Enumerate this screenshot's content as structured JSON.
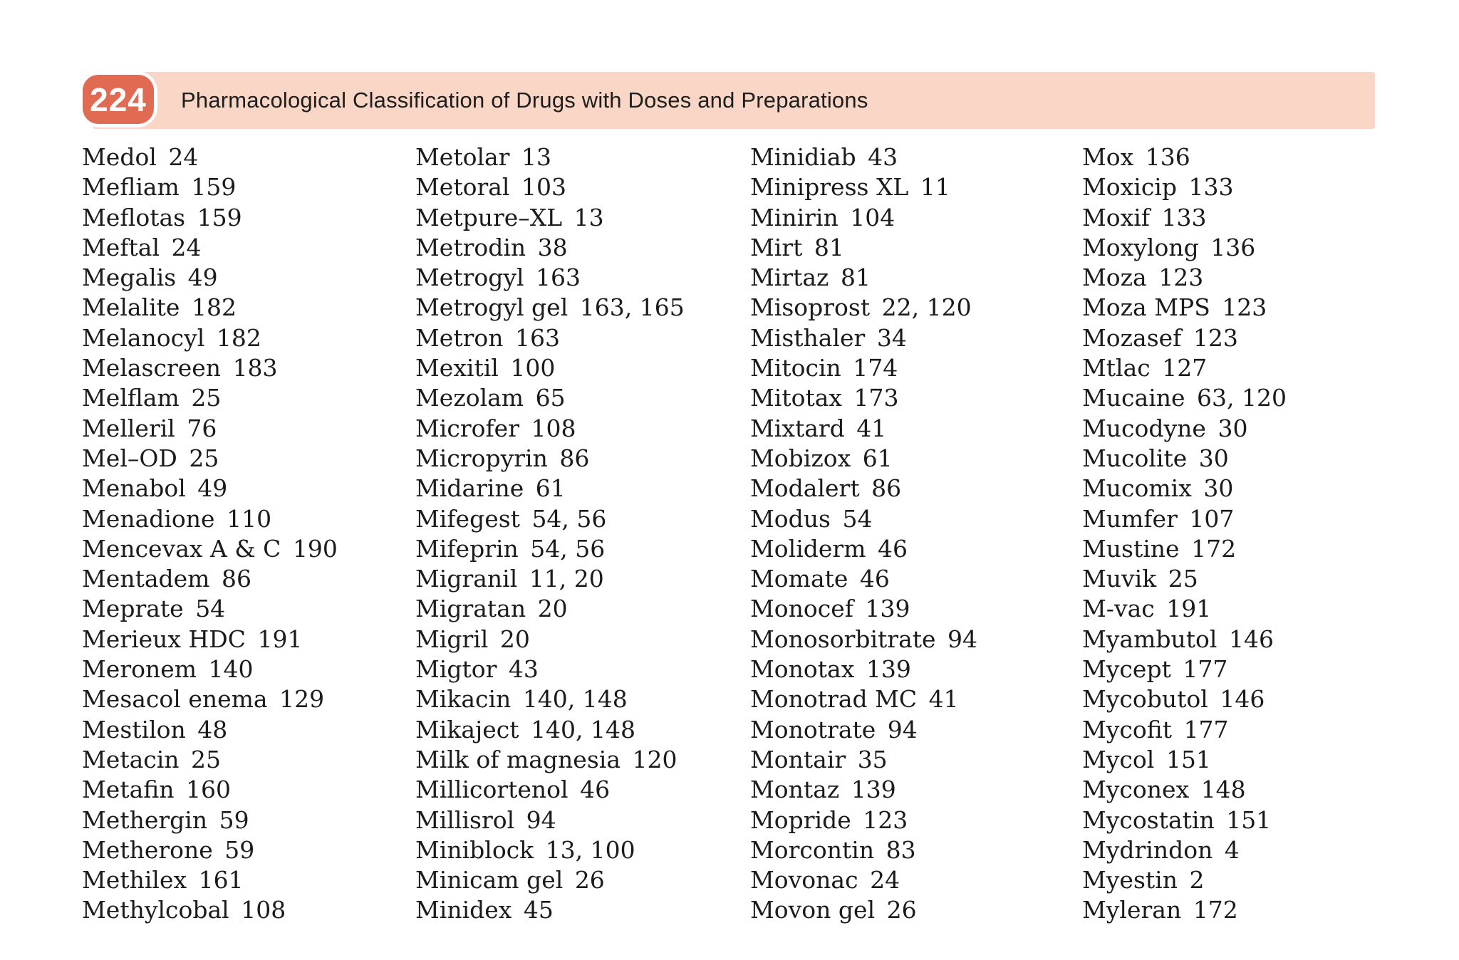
{
  "header": {
    "page_number": "224",
    "title": "Pharmacological Classification of Drugs with Doses and Preparations"
  },
  "colors": {
    "badge": "#e06a52",
    "band": "#f9d6c6",
    "body_text": "#1b1b1b"
  },
  "index": {
    "columns": [
      {
        "entries": [
          {
            "name": "Medol",
            "pages": "24"
          },
          {
            "name": "Mefliam",
            "pages": "159"
          },
          {
            "name": "Meflotas",
            "pages": "159"
          },
          {
            "name": "Meftal",
            "pages": "24"
          },
          {
            "name": "Megalis",
            "pages": "49"
          },
          {
            "name": "Melalite",
            "pages": "182"
          },
          {
            "name": "Melanocyl",
            "pages": "182"
          },
          {
            "name": "Melascreen",
            "pages": "183"
          },
          {
            "name": "Melflam",
            "pages": "25"
          },
          {
            "name": "Melleril",
            "pages": "76"
          },
          {
            "name": "Mel–OD",
            "pages": "25"
          },
          {
            "name": "Menabol",
            "pages": "49"
          },
          {
            "name": "Menadione",
            "pages": "110"
          },
          {
            "name": "Mencevax A & C",
            "pages": "190"
          },
          {
            "name": "Mentadem",
            "pages": "86"
          },
          {
            "name": "Meprate",
            "pages": "54"
          },
          {
            "name": "Merieux HDC",
            "pages": "191"
          },
          {
            "name": "Meronem",
            "pages": "140"
          },
          {
            "name": "Mesacol enema",
            "pages": "129"
          },
          {
            "name": "Mestilon",
            "pages": "48"
          },
          {
            "name": "Metacin",
            "pages": "25"
          },
          {
            "name": "Metafin",
            "pages": "160"
          },
          {
            "name": "Methergin",
            "pages": "59"
          },
          {
            "name": "Metherone",
            "pages": "59"
          },
          {
            "name": "Methilex",
            "pages": "161"
          },
          {
            "name": "Methylcobal",
            "pages": "108"
          }
        ]
      },
      {
        "entries": [
          {
            "name": "Metolar",
            "pages": "13"
          },
          {
            "name": "Metoral",
            "pages": "103"
          },
          {
            "name": "Metpure–XL",
            "pages": "13"
          },
          {
            "name": "Metrodin",
            "pages": "38"
          },
          {
            "name": "Metrogyl",
            "pages": "163"
          },
          {
            "name": "Metrogyl gel",
            "pages": "163, 165"
          },
          {
            "name": "Metron",
            "pages": "163"
          },
          {
            "name": "Mexitil",
            "pages": "100"
          },
          {
            "name": "Mezolam",
            "pages": "65"
          },
          {
            "name": "Microfer",
            "pages": "108"
          },
          {
            "name": "Micropyrin",
            "pages": "86"
          },
          {
            "name": "Midarine",
            "pages": "61"
          },
          {
            "name": "Mifegest",
            "pages": "54, 56"
          },
          {
            "name": "Mifeprin",
            "pages": "54, 56"
          },
          {
            "name": "Migranil",
            "pages": "11, 20"
          },
          {
            "name": "Migratan",
            "pages": "20"
          },
          {
            "name": "Migril",
            "pages": "20"
          },
          {
            "name": "Migtor",
            "pages": "43"
          },
          {
            "name": "Mikacin",
            "pages": "140, 148"
          },
          {
            "name": "Mikaject",
            "pages": "140, 148"
          },
          {
            "name": "Milk of magnesia",
            "pages": "120"
          },
          {
            "name": "Millicortenol",
            "pages": "46"
          },
          {
            "name": "Millisrol",
            "pages": "94"
          },
          {
            "name": "Miniblock",
            "pages": "13, 100"
          },
          {
            "name": "Minicam gel",
            "pages": "26"
          },
          {
            "name": "Minidex",
            "pages": "45"
          }
        ]
      },
      {
        "entries": [
          {
            "name": "Minidiab",
            "pages": "43"
          },
          {
            "name": "Minipress XL",
            "pages": "11"
          },
          {
            "name": "Minirin",
            "pages": "104"
          },
          {
            "name": "Mirt",
            "pages": "81"
          },
          {
            "name": "Mirtaz",
            "pages": "81"
          },
          {
            "name": "Misoprost",
            "pages": "22, 120"
          },
          {
            "name": "Misthaler",
            "pages": "34"
          },
          {
            "name": "Mitocin",
            "pages": "174"
          },
          {
            "name": "Mitotax",
            "pages": "173"
          },
          {
            "name": "Mixtard",
            "pages": "41"
          },
          {
            "name": "Mobizox",
            "pages": "61"
          },
          {
            "name": "Modalert",
            "pages": "86"
          },
          {
            "name": "Modus",
            "pages": "54"
          },
          {
            "name": "Moliderm",
            "pages": "46"
          },
          {
            "name": "Momate",
            "pages": "46"
          },
          {
            "name": "Monocef",
            "pages": "139"
          },
          {
            "name": "Monosorbitrate",
            "pages": "94"
          },
          {
            "name": "Monotax",
            "pages": "139"
          },
          {
            "name": "Monotrad MC",
            "pages": "41"
          },
          {
            "name": "Monotrate",
            "pages": "94"
          },
          {
            "name": "Montair",
            "pages": "35"
          },
          {
            "name": "Montaz",
            "pages": "139"
          },
          {
            "name": "Mopride",
            "pages": "123"
          },
          {
            "name": "Morcontin",
            "pages": "83"
          },
          {
            "name": "Movonac",
            "pages": "24"
          },
          {
            "name": "Movon gel",
            "pages": "26"
          }
        ]
      },
      {
        "entries": [
          {
            "name": "Mox",
            "pages": "136"
          },
          {
            "name": "Moxicip",
            "pages": "133"
          },
          {
            "name": "Moxif",
            "pages": "133"
          },
          {
            "name": "Moxylong",
            "pages": "136"
          },
          {
            "name": "Moza",
            "pages": "123"
          },
          {
            "name": "Moza MPS",
            "pages": "123"
          },
          {
            "name": "Mozasef",
            "pages": "123"
          },
          {
            "name": "Mtlac",
            "pages": "127"
          },
          {
            "name": "Mucaine",
            "pages": "63, 120"
          },
          {
            "name": "Mucodyne",
            "pages": "30"
          },
          {
            "name": "Mucolite",
            "pages": "30"
          },
          {
            "name": "Mucomix",
            "pages": "30"
          },
          {
            "name": "Mumfer",
            "pages": "107"
          },
          {
            "name": "Mustine",
            "pages": "172"
          },
          {
            "name": "Muvik",
            "pages": "25"
          },
          {
            "name": "M-vac",
            "pages": "191"
          },
          {
            "name": "Myambutol",
            "pages": "146"
          },
          {
            "name": "Mycept",
            "pages": "177"
          },
          {
            "name": "Mycobutol",
            "pages": "146"
          },
          {
            "name": "Mycofit",
            "pages": "177"
          },
          {
            "name": "Mycol",
            "pages": "151"
          },
          {
            "name": "Myconex",
            "pages": "148"
          },
          {
            "name": "Mycostatin",
            "pages": "151"
          },
          {
            "name": "Mydrindon",
            "pages": "4"
          },
          {
            "name": "Myestin",
            "pages": "2"
          },
          {
            "name": "Myleran",
            "pages": "172"
          }
        ]
      }
    ]
  }
}
